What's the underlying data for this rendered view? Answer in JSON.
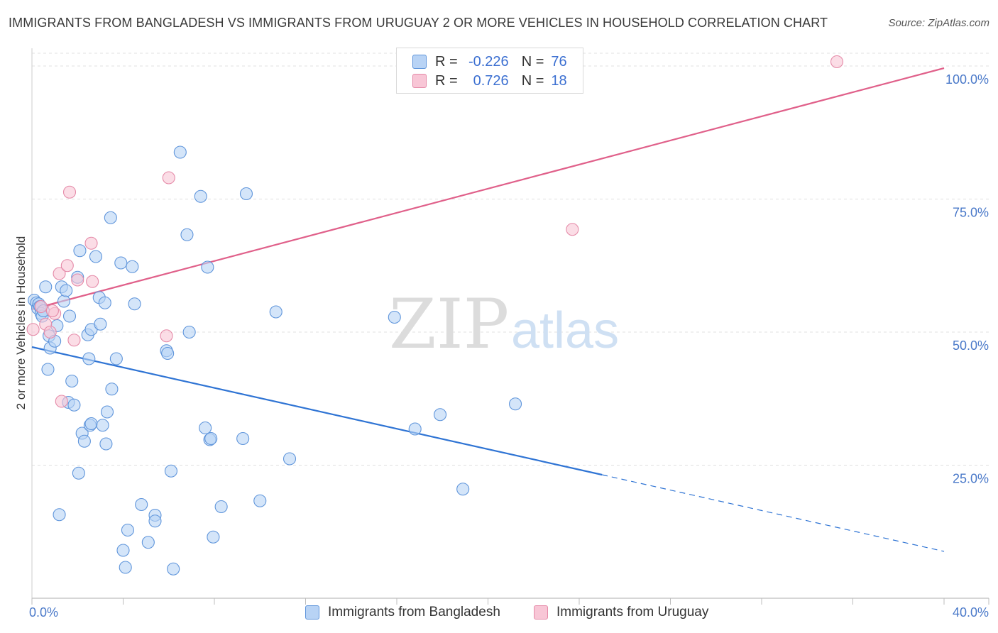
{
  "title": "IMMIGRANTS FROM BANGLADESH VS IMMIGRANTS FROM URUGUAY 2 OR MORE VEHICLES IN HOUSEHOLD CORRELATION CHART",
  "source": "Source: ZipAtlas.com",
  "watermark": {
    "zip": "ZIP",
    "atlas": "atlas"
  },
  "legend": {
    "rows": [
      {
        "r_label": "R =",
        "r_value": "-0.226",
        "n_label": "N =",
        "n_value": "76"
      },
      {
        "r_label": "R =",
        "r_value": "0.726",
        "n_label": "N =",
        "n_value": "18"
      }
    ]
  },
  "bottom_legend": {
    "bangladesh": "Immigrants from Bangladesh",
    "uruguay": "Immigrants from Uruguay"
  },
  "colors": {
    "bangladesh_fill": "#b8d3f5",
    "bangladesh_stroke": "#5f95db",
    "bangladesh_line": "#2f74d4",
    "uruguay_fill": "#f8c6d6",
    "uruguay_stroke": "#e58aa8",
    "uruguay_line": "#e0608a",
    "axis_text": "#4a79c9",
    "grid": "#e0e0e0"
  },
  "chart_data": {
    "type": "scatter",
    "title": "IMMIGRANTS FROM BANGLADESH VS IMMIGRANTS FROM URUGUAY 2 OR MORE VEHICLES IN HOUSEHOLD CORRELATION CHART",
    "xlabel": "",
    "ylabel": "2 or more Vehicles in Household",
    "xlim": [
      0,
      40
    ],
    "ylim": [
      0,
      102
    ],
    "x_tick_labels": [
      "0.0%",
      "40.0%"
    ],
    "y_ticks": [
      25,
      50,
      75,
      100
    ],
    "y_tick_labels": [
      "25.0%",
      "50.0%",
      "75.0%",
      "100.0%"
    ],
    "grid": true,
    "series": [
      {
        "name": "Immigrants from Bangladesh",
        "r": -0.226,
        "n": 76,
        "trend": {
          "x_start": 0,
          "y_start": 47.2,
          "x_solid_end": 25,
          "x_end": 40,
          "y_end": 8.8
        },
        "points": [
          [
            0.1,
            56.0
          ],
          [
            0.2,
            55.5
          ],
          [
            0.25,
            54.5
          ],
          [
            0.3,
            55.3
          ],
          [
            0.35,
            54.8
          ],
          [
            0.4,
            53.5
          ],
          [
            0.45,
            53.0
          ],
          [
            0.5,
            54.0
          ],
          [
            0.6,
            58.5
          ],
          [
            0.7,
            43.0
          ],
          [
            0.75,
            49.3
          ],
          [
            0.8,
            47.0
          ],
          [
            1.0,
            48.3
          ],
          [
            1.1,
            51.2
          ],
          [
            1.3,
            58.5
          ],
          [
            1.4,
            55.8
          ],
          [
            1.5,
            57.8
          ],
          [
            1.6,
            36.8
          ],
          [
            1.65,
            53.0
          ],
          [
            1.75,
            40.8
          ],
          [
            1.85,
            36.3
          ],
          [
            2.0,
            60.3
          ],
          [
            2.05,
            23.5
          ],
          [
            2.1,
            65.3
          ],
          [
            2.2,
            31.0
          ],
          [
            2.3,
            29.5
          ],
          [
            2.45,
            49.5
          ],
          [
            2.5,
            45.0
          ],
          [
            2.55,
            32.5
          ],
          [
            2.6,
            32.8
          ],
          [
            2.6,
            50.5
          ],
          [
            2.8,
            64.2
          ],
          [
            2.95,
            56.5
          ],
          [
            3.0,
            51.5
          ],
          [
            3.1,
            32.5
          ],
          [
            3.2,
            55.5
          ],
          [
            3.25,
            29.0
          ],
          [
            3.3,
            35.0
          ],
          [
            3.45,
            71.5
          ],
          [
            3.5,
            39.3
          ],
          [
            3.7,
            45.0
          ],
          [
            3.9,
            63.0
          ],
          [
            1.2,
            15.7
          ],
          [
            4.0,
            9.0
          ],
          [
            4.1,
            5.8
          ],
          [
            4.2,
            12.8
          ],
          [
            4.4,
            62.3
          ],
          [
            4.5,
            55.3
          ],
          [
            4.8,
            17.6
          ],
          [
            5.1,
            10.5
          ],
          [
            5.4,
            15.6
          ],
          [
            5.4,
            14.5
          ],
          [
            5.9,
            46.5
          ],
          [
            5.95,
            46.0
          ],
          [
            6.1,
            23.9
          ],
          [
            6.2,
            5.5
          ],
          [
            6.5,
            83.8
          ],
          [
            6.8,
            68.3
          ],
          [
            6.9,
            50.0
          ],
          [
            7.4,
            75.5
          ],
          [
            7.6,
            32.0
          ],
          [
            7.7,
            62.2
          ],
          [
            7.8,
            29.8
          ],
          [
            7.85,
            30.0
          ],
          [
            7.95,
            11.5
          ],
          [
            8.3,
            17.2
          ],
          [
            9.25,
            30.0
          ],
          [
            9.4,
            76.0
          ],
          [
            10.0,
            18.3
          ],
          [
            10.7,
            53.8
          ],
          [
            11.3,
            26.2
          ],
          [
            15.9,
            52.8
          ],
          [
            16.8,
            31.8
          ],
          [
            17.9,
            34.5
          ],
          [
            18.9,
            20.5
          ],
          [
            21.2,
            36.5
          ]
        ]
      },
      {
        "name": "Immigrants from Uruguay",
        "r": 0.726,
        "n": 18,
        "trend": {
          "x_start": 0,
          "y_start": 54.3,
          "x_end": 40,
          "y_end": 99.6
        },
        "points": [
          [
            0.05,
            50.5
          ],
          [
            0.4,
            54.8
          ],
          [
            0.6,
            51.5
          ],
          [
            0.8,
            50.0
          ],
          [
            1.0,
            53.5
          ],
          [
            1.2,
            61.0
          ],
          [
            1.3,
            37.0
          ],
          [
            1.55,
            62.5
          ],
          [
            1.65,
            76.3
          ],
          [
            1.85,
            48.5
          ],
          [
            2.0,
            59.8
          ],
          [
            2.6,
            66.7
          ],
          [
            2.65,
            59.5
          ],
          [
            5.9,
            49.3
          ],
          [
            6.0,
            79.0
          ],
          [
            23.7,
            69.3
          ],
          [
            35.3,
            100.8
          ],
          [
            0.9,
            54.0
          ]
        ]
      }
    ]
  }
}
